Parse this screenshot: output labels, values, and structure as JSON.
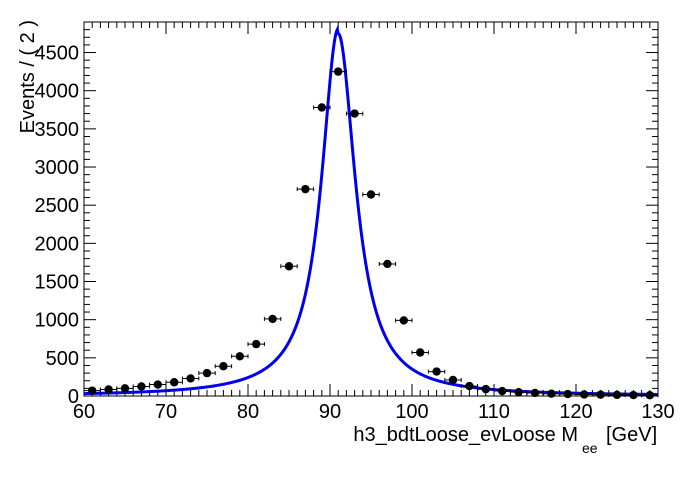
{
  "chart_data": {
    "type": "scatter",
    "title": "",
    "xlabel": "h3_bdtLoose_evLoose  M",
    "xlabel_subscript": "ee",
    "xlabel_unit": "[GeV]",
    "ylabel": "Events / ( 2 )",
    "xlim": [
      60,
      130
    ],
    "ylim": [
      0,
      4900
    ],
    "x_ticks": [
      "60",
      "70",
      "80",
      "90",
      "100",
      "110",
      "120",
      "130"
    ],
    "y_ticks": [
      "0",
      "500",
      "1000",
      "1500",
      "2000",
      "2500",
      "3000",
      "3500",
      "4000",
      "4500"
    ],
    "series": [
      {
        "kind": "points_with_errors",
        "x": [
          61,
          63,
          65,
          67,
          69,
          71,
          73,
          75,
          77,
          79,
          81,
          83,
          85,
          87,
          89,
          91,
          93,
          95,
          97,
          99,
          101,
          103,
          105,
          107,
          109,
          111,
          113,
          115,
          117,
          119,
          121,
          123,
          125,
          127,
          129
        ],
        "y": [
          70,
          85,
          100,
          125,
          150,
          180,
          230,
          300,
          390,
          520,
          680,
          1010,
          1700,
          2710,
          3780,
          4250,
          3700,
          2640,
          1730,
          990,
          570,
          320,
          210,
          130,
          90,
          65,
          50,
          40,
          30,
          25,
          20,
          18,
          15,
          12,
          10
        ],
        "xerr": 1,
        "color": "#000000"
      },
      {
        "kind": "fit_curve",
        "peak_x": 91,
        "peak_y": 4750,
        "color": "#0000ee"
      }
    ],
    "grid": false,
    "legend": "none"
  }
}
